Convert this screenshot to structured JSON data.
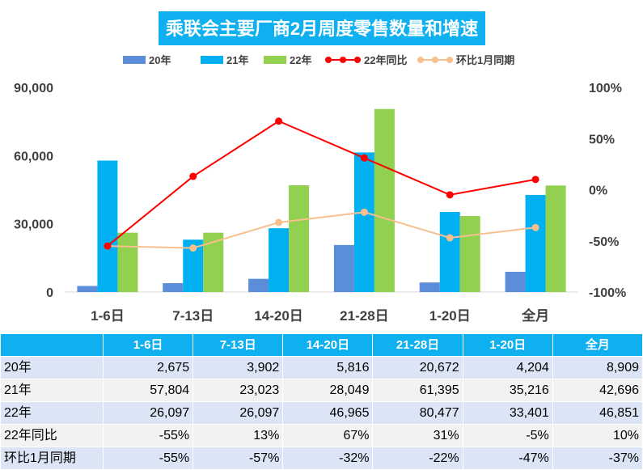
{
  "chart_data": {
    "type": "bar",
    "title": "乘联会主要厂商2月周度零售数量和增速",
    "categories": [
      "1-6日",
      "7-13日",
      "14-20日",
      "21-28日",
      "1-20日",
      "全月"
    ],
    "left_axis": {
      "ticks": [
        "0",
        "30,000",
        "60,000",
        "90,000"
      ],
      "ylim": [
        0,
        90000
      ]
    },
    "right_axis": {
      "ticks": [
        "-100%",
        "-50%",
        "0%",
        "50%",
        "100%"
      ],
      "ylim": [
        -100,
        100
      ]
    },
    "grid": false,
    "legend": "top",
    "series": [
      {
        "name": "20年",
        "type": "bar",
        "axis": "left",
        "color": "#5b8dd9",
        "values": [
          2675,
          3902,
          5816,
          20672,
          4204,
          8909
        ]
      },
      {
        "name": "21年",
        "type": "bar",
        "axis": "left",
        "color": "#00b0f0",
        "values": [
          57804,
          23023,
          28049,
          61395,
          35216,
          42696
        ]
      },
      {
        "name": "22年",
        "type": "bar",
        "axis": "left",
        "color": "#92d050",
        "values": [
          26097,
          26097,
          46965,
          80477,
          33401,
          46851
        ]
      },
      {
        "name": "22年同比",
        "type": "line",
        "axis": "right",
        "color": "#ff0000",
        "values": [
          -55,
          13,
          67,
          31,
          -5,
          10
        ]
      },
      {
        "name": "环比1月同期",
        "type": "line",
        "axis": "right",
        "color": "#f8c08f",
        "values": [
          -55,
          -57,
          -32,
          -22,
          -47,
          -37
        ]
      }
    ]
  },
  "table": {
    "header": [
      "",
      "1-6日",
      "7-13日",
      "14-20日",
      "21-28日",
      "1-20日",
      "全月"
    ],
    "rows": [
      [
        "20年",
        "2,675",
        "3,902",
        "5,816",
        "20,672",
        "4,204",
        "8,909"
      ],
      [
        "21年",
        "57,804",
        "23,023",
        "28,049",
        "61,395",
        "35,216",
        "42,696"
      ],
      [
        "22年",
        "26,097",
        "26,097",
        "46,965",
        "80,477",
        "33,401",
        "46,851"
      ],
      [
        "22年同比",
        "-55%",
        "13%",
        "67%",
        "31%",
        "-5%",
        "10%"
      ],
      [
        "环比1月同期",
        "-55%",
        "-57%",
        "-32%",
        "-22%",
        "-47%",
        "-37%"
      ]
    ]
  }
}
